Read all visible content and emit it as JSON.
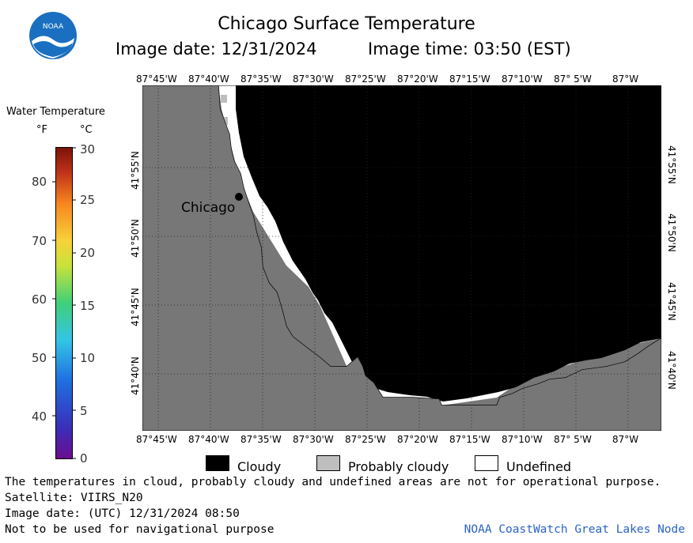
{
  "header": {
    "title": "Chicago Surface Temperature",
    "image_date": "Image date: 12/31/2024",
    "image_time": "Image time: 03:50 (EST)",
    "logo_text": "NOAA"
  },
  "legend": {
    "title": "Water Temperature",
    "unit_f": "°F",
    "unit_c": "°C",
    "f_ticks": [
      "80",
      "70",
      "60",
      "50",
      "40"
    ],
    "c_ticks": [
      "30",
      "25",
      "20",
      "15",
      "10",
      "5",
      "0"
    ]
  },
  "map": {
    "lon_labels": [
      "87°45'W",
      "87°40'W",
      "87°35'W",
      "87°30'W",
      "87°25'W",
      "87°20'W",
      "87°15'W",
      "87°10'W",
      "87° 5'W",
      "87°W"
    ],
    "lat_labels": [
      "41°55'N",
      "41°50'N",
      "41°45'N",
      "41°40'N"
    ],
    "city_label": "Chicago",
    "colors": {
      "land": "#777777",
      "cloudy": "#000000",
      "probably_cloudy": "#bebebe",
      "undefined": "#ffffff"
    }
  },
  "key": {
    "cloudy": "Cloudy",
    "probably_cloudy": "Probably cloudy",
    "undefined": "Undefined"
  },
  "footer": {
    "disclaimer": "The temperatures in cloud, probably cloudy and undefined areas are not for operational purpose.",
    "satellite": "Satellite: VIIRS_N20",
    "utc_date": "Image date: (UTC) 12/31/2024  08:50",
    "navigation": "Not to be used for navigational purpose",
    "credit": "NOAA CoastWatch Great Lakes Node"
  }
}
